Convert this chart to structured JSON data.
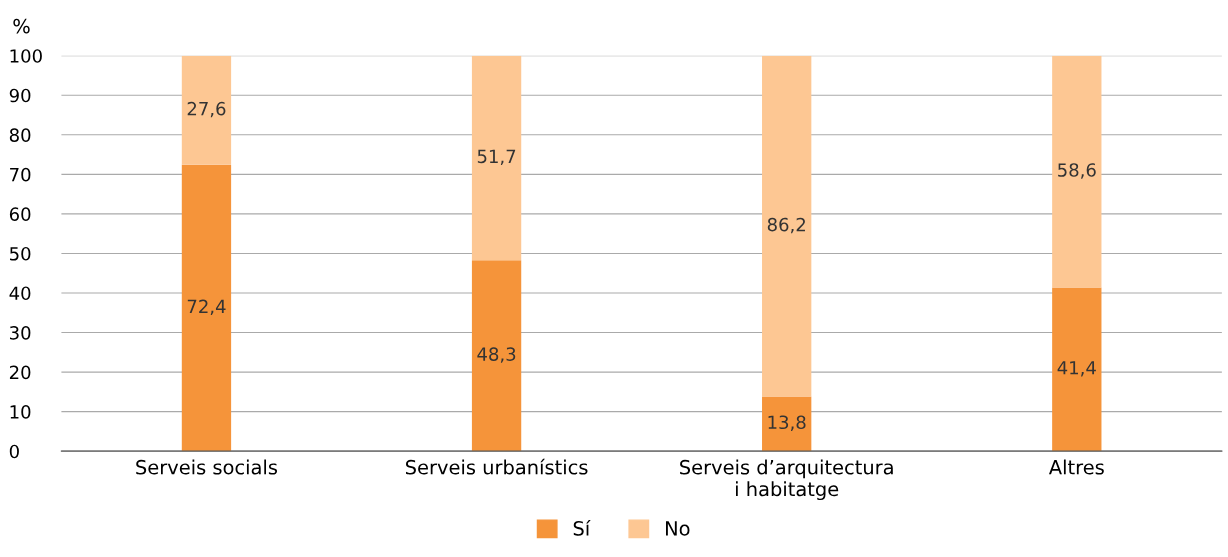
{
  "chart_data": {
    "type": "bar",
    "stacked": true,
    "ylabel": "%",
    "categories": [
      "Serveis socials",
      "Serveis urbanístics",
      "Serveis d’arquitectura\ni habitatge",
      "Altres"
    ],
    "series": [
      {
        "name": "Sí",
        "color": "#f5943a",
        "values": [
          72.4,
          48.3,
          13.8,
          41.4
        ],
        "value_labels": [
          "72,4",
          "48,3",
          "13,8",
          "41,4"
        ]
      },
      {
        "name": "No",
        "color": "#fdc793",
        "values": [
          27.6,
          51.7,
          86.2,
          58.6
        ],
        "value_labels": [
          "27,6",
          "51,7",
          "86,2",
          "58,6"
        ]
      }
    ],
    "ylim": [
      0,
      100
    ],
    "yticks": [
      0,
      10,
      20,
      30,
      40,
      50,
      60,
      70,
      80,
      90,
      100
    ],
    "grid": "y",
    "legend": "bottom"
  }
}
